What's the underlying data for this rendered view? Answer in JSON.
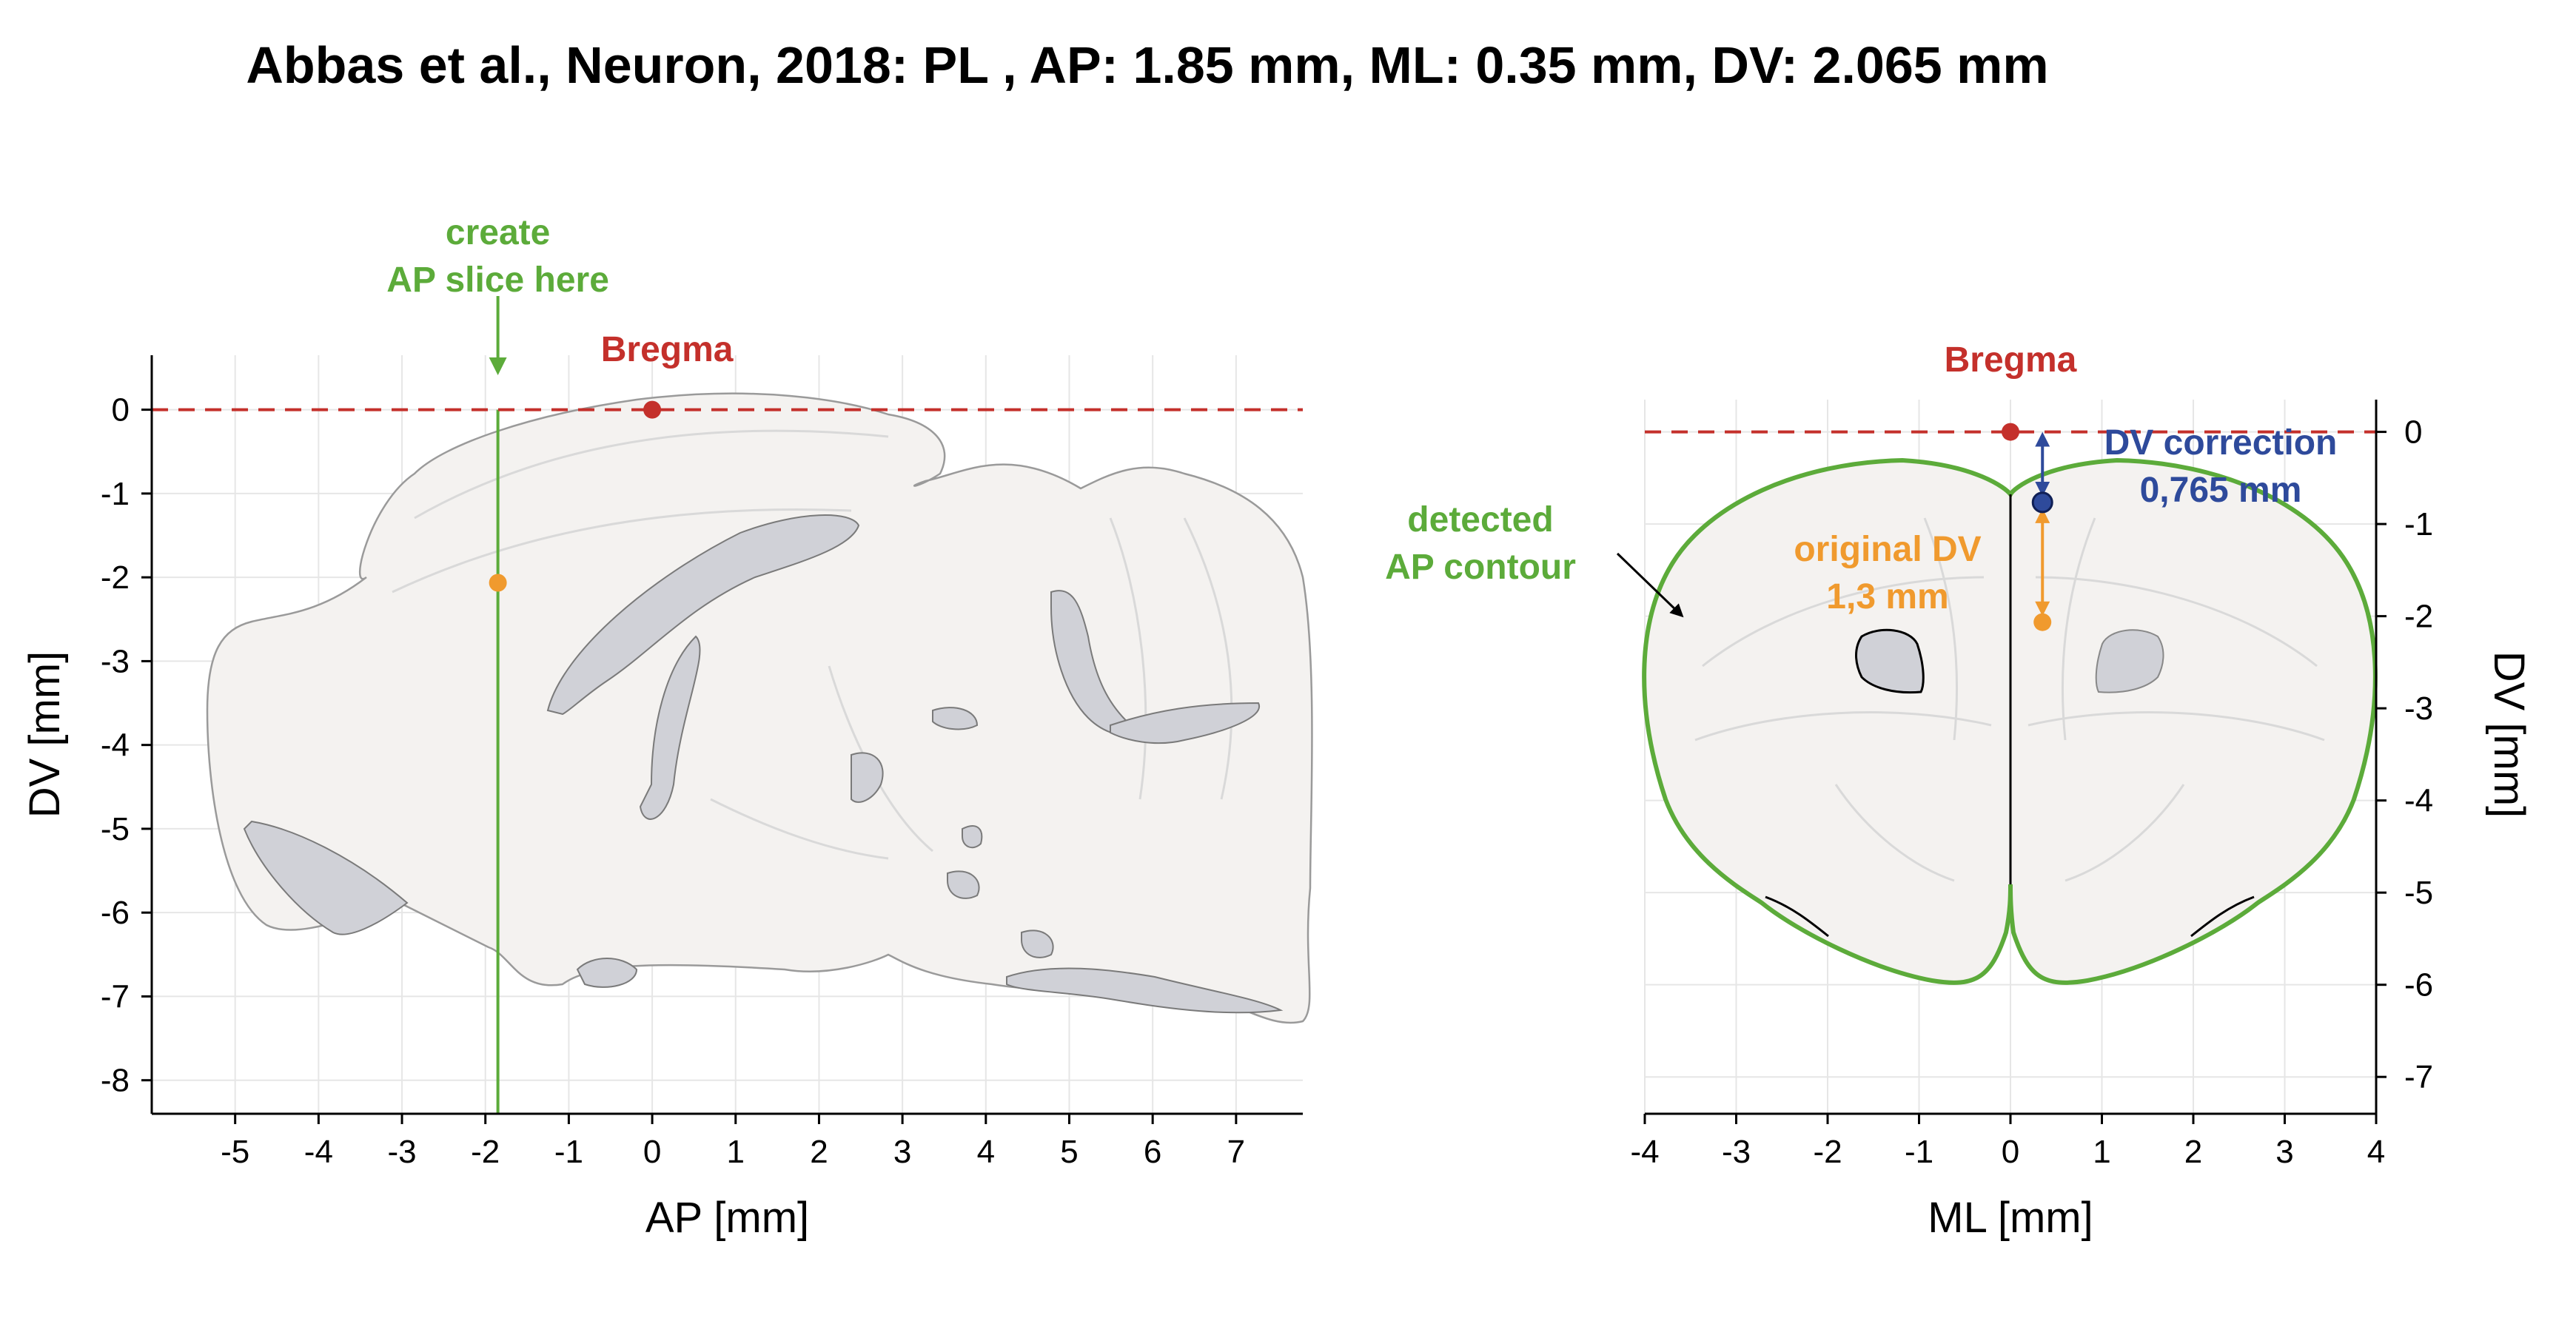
{
  "title": "Abbas et al., Neuron, 2018: PL , AP: 1.85 mm, ML: 0.35 mm, DV: 2.065 mm",
  "colors": {
    "bregma": "#c4302b",
    "slice": "#5cab3a",
    "target": "#f09a2e",
    "correction": "#2e4a9b",
    "region": "#d0d1d7",
    "brain": "#f4f2f0"
  },
  "chart_data": [
    {
      "type": "scatter",
      "name": "sagittal",
      "xlabel": "AP [mm]",
      "ylabel": "DV [mm]",
      "xlim": [
        -6,
        7.8
      ],
      "ylim": [
        -8.4,
        0.65
      ],
      "xticks": [
        -5,
        -4,
        -3,
        -2,
        -1,
        0,
        1,
        2,
        3,
        4,
        5,
        6,
        7
      ],
      "yticks": [
        0,
        -1,
        -2,
        -3,
        -4,
        -5,
        -6,
        -7,
        -8
      ],
      "grid": true,
      "slice_ap": -1.85,
      "bregma": {
        "x": 0,
        "y": 0,
        "label": "Bregma"
      },
      "target": {
        "x": -1.85,
        "y": -2.065
      },
      "annotations": {
        "slice_line1": "create",
        "slice_line2": "AP slice here"
      }
    },
    {
      "type": "scatter",
      "name": "coronal",
      "xlabel": "ML [mm]",
      "ylabel": "DV [mm]",
      "xlim": [
        -4,
        4
      ],
      "ylim": [
        -7.4,
        0.35
      ],
      "xticks": [
        -4,
        -3,
        -2,
        -1,
        0,
        1,
        2,
        3,
        4
      ],
      "yticks": [
        0,
        -1,
        -2,
        -3,
        -4,
        -5,
        -6,
        -7
      ],
      "grid": true,
      "bregma": {
        "x": 0,
        "y": 0,
        "label": "Bregma"
      },
      "corrected_point": {
        "x": 0.35,
        "y": -0.765
      },
      "target": {
        "x": 0.35,
        "y": -2.065
      },
      "annotations": {
        "contour_line1": "detected",
        "contour_line2": "AP contour",
        "original_line1": "original DV",
        "original_line2": "1,3 mm",
        "correction_line1": "DV correction",
        "correction_line2": "0,765 mm"
      }
    }
  ]
}
